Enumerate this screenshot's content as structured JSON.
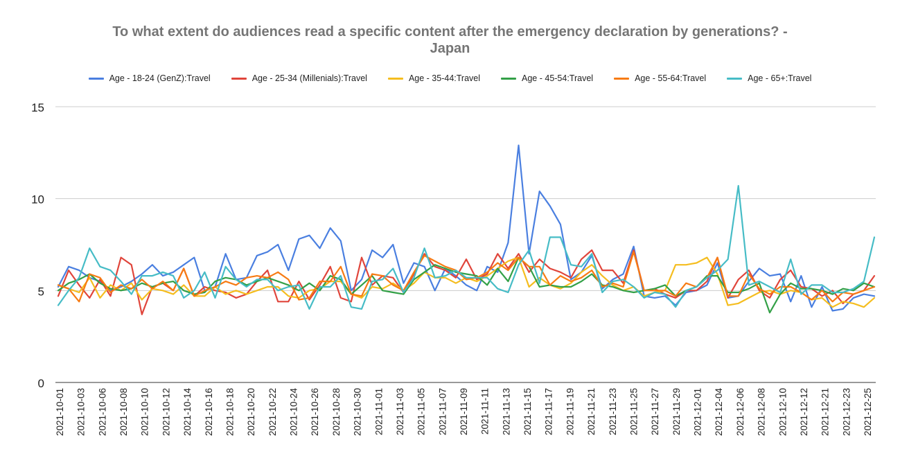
{
  "chart_data": {
    "type": "line",
    "title": "To what extent do audiences read a specific content after the emergency declaration by generations? - Japan",
    "title_lines": [
      "To what extent do audiences read a specific content after the emergency declaration by generations? -",
      "Japan"
    ],
    "xlabel": "",
    "ylabel": "",
    "ylim": [
      0,
      15
    ],
    "yticks": [
      0,
      5,
      10,
      15
    ],
    "grid": true,
    "legend_position": "top",
    "x_tick_labels": [
      "2021-10-01",
      "2021-10-03",
      "2021-10-06",
      "2021-10-08",
      "2021-10-10",
      "2021-10-12",
      "2021-10-14",
      "2021-10-16",
      "2021-10-18",
      "2021-10-20",
      "2021-10-22",
      "2021-10-24",
      "2021-10-26",
      "2021-10-28",
      "2021-10-30",
      "2021-11-01",
      "2021-11-03",
      "2021-11-05",
      "2021-11-07",
      "2021-11-09",
      "2021-11-11",
      "2021-11-13",
      "2021-11-15",
      "2021-11-17",
      "2021-11-19",
      "2021-11-21",
      "2021-11-23",
      "2021-11-25",
      "2021-11-27",
      "2021-11-29",
      "2021-12-01",
      "2021-12-04",
      "2021-12-06",
      "2021-12-08",
      "2021-12-10",
      "2021-12-12",
      "2021-12-21",
      "2021-12-23",
      "2021-12-25"
    ],
    "series": [
      {
        "name": "Age  - 18-24 (GenZ):Travel",
        "color": "#4a7fe0",
        "values": [
          5.2,
          6.3,
          6.1,
          5.7,
          5.5,
          5.0,
          5.2,
          5.5,
          5.9,
          6.4,
          5.8,
          6.0,
          6.4,
          6.8,
          5.0,
          5.2,
          7.0,
          5.6,
          5.7,
          6.9,
          7.1,
          7.5,
          6.1,
          7.8,
          8.0,
          7.3,
          8.4,
          7.7,
          5.0,
          5.6,
          7.2,
          6.8,
          7.5,
          5.4,
          6.5,
          6.3,
          5.0,
          6.2,
          5.8,
          5.3,
          5.0,
          6.3,
          6.0,
          7.6,
          12.9,
          7.0,
          10.4,
          9.6,
          8.6,
          5.6,
          6.0,
          6.9,
          5.1,
          5.6,
          5.9,
          7.4,
          4.7,
          4.6,
          4.7,
          4.2,
          4.9,
          5.0,
          5.3,
          6.5,
          4.6,
          4.7,
          5.5,
          6.2,
          5.8,
          5.9,
          4.4,
          5.8,
          4.1,
          5.2,
          3.9,
          4.0,
          4.6,
          4.8,
          4.7
        ]
      },
      {
        "name": "Age  - 25-34 (Millenials):Travel",
        "color": "#e0453b",
        "values": [
          4.7,
          6.1,
          5.3,
          4.6,
          5.6,
          4.7,
          6.8,
          6.4,
          3.7,
          5.2,
          5.4,
          5.0,
          6.2,
          4.7,
          5.2,
          5.0,
          4.9,
          4.6,
          4.8,
          5.5,
          6.1,
          4.4,
          4.4,
          5.5,
          4.5,
          5.3,
          6.3,
          4.6,
          4.4,
          6.8,
          5.3,
          5.8,
          5.7,
          4.9,
          5.9,
          7.0,
          6.3,
          6.1,
          5.7,
          6.7,
          5.6,
          5.9,
          7.0,
          6.2,
          7.0,
          6.0,
          6.7,
          6.2,
          6.0,
          5.7,
          6.7,
          7.2,
          6.1,
          6.1,
          5.4,
          7.2,
          5.0,
          5.1,
          4.8,
          4.6,
          5.0,
          5.0,
          5.5,
          6.8,
          4.6,
          5.6,
          6.1,
          5.0,
          4.6,
          5.6,
          6.1,
          5.2,
          5.1,
          4.7,
          5.0,
          4.3,
          4.8,
          5.0,
          5.8
        ]
      },
      {
        "name": "Age  - 35-44:Travel",
        "color": "#f5bd1f",
        "values": [
          5.3,
          5.1,
          4.9,
          5.7,
          4.6,
          5.3,
          5.0,
          5.4,
          4.5,
          5.1,
          5.0,
          4.8,
          5.3,
          4.7,
          4.7,
          5.2,
          4.8,
          5.0,
          4.8,
          5.0,
          5.2,
          5.2,
          4.7,
          4.6,
          5.0,
          5.1,
          5.5,
          5.5,
          4.8,
          4.6,
          5.2,
          5.1,
          5.4,
          5.0,
          5.4,
          6.0,
          5.7,
          5.7,
          5.4,
          5.7,
          5.5,
          5.8,
          6.2,
          6.6,
          6.8,
          5.2,
          5.7,
          5.3,
          5.1,
          5.4,
          6.0,
          6.4,
          5.8,
          5.3,
          5.0,
          5.2,
          4.7,
          4.9,
          5.0,
          6.4,
          6.4,
          6.5,
          6.8,
          5.9,
          4.2,
          4.3,
          4.6,
          4.9,
          5.0,
          4.8,
          5.0,
          4.9,
          4.5,
          4.6,
          4.1,
          4.4,
          4.3,
          4.1,
          4.6
        ]
      },
      {
        "name": "Age  - 45-54:Travel",
        "color": "#33a047",
        "values": [
          5.0,
          5.4,
          5.6,
          5.9,
          5.4,
          5.1,
          5.0,
          5.1,
          5.4,
          5.2,
          5.4,
          5.5,
          5.0,
          4.8,
          4.9,
          5.5,
          5.7,
          5.6,
          5.3,
          5.5,
          5.7,
          5.5,
          5.3,
          5.0,
          5.4,
          5.0,
          5.8,
          5.6,
          4.8,
          5.3,
          5.8,
          5.0,
          4.9,
          4.8,
          5.6,
          6.0,
          6.4,
          6.2,
          6.0,
          5.9,
          5.8,
          5.3,
          6.2,
          5.5,
          6.8,
          6.3,
          5.2,
          5.3,
          5.2,
          5.2,
          5.5,
          5.9,
          5.3,
          5.2,
          5.0,
          4.9,
          5.0,
          5.1,
          5.3,
          4.7,
          5.0,
          5.2,
          5.8,
          5.8,
          4.9,
          4.9,
          5.1,
          5.4,
          3.8,
          4.8,
          5.4,
          5.1,
          5.1,
          5.0,
          4.8,
          5.1,
          5.0,
          5.4,
          5.2
        ]
      },
      {
        "name": "Age  - 55-64:Travel",
        "color": "#f77b13",
        "values": [
          5.3,
          5.1,
          4.4,
          5.9,
          5.7,
          4.9,
          5.3,
          5.1,
          5.6,
          5.1,
          5.5,
          5.0,
          6.2,
          4.7,
          5.0,
          5.2,
          5.5,
          5.3,
          5.7,
          5.8,
          5.7,
          6.0,
          5.6,
          4.5,
          4.6,
          5.5,
          5.5,
          6.3,
          4.8,
          4.7,
          5.9,
          5.8,
          5.3,
          5.0,
          6.0,
          6.9,
          6.6,
          6.3,
          6.1,
          5.6,
          5.7,
          6.0,
          6.5,
          6.1,
          6.8,
          6.3,
          6.3,
          5.3,
          5.8,
          5.5,
          5.7,
          6.1,
          5.2,
          5.4,
          5.2,
          7.1,
          5.0,
          5.0,
          5.0,
          4.7,
          5.4,
          5.2,
          5.7,
          6.8,
          4.7,
          4.7,
          5.9,
          5.1,
          4.8,
          5.2,
          5.2,
          4.9,
          4.5,
          5.0,
          4.4,
          4.9,
          4.8,
          5.0,
          5.2
        ]
      },
      {
        "name": "Age  - 65+:Travel",
        "color": "#46bcc6",
        "values": [
          4.2,
          5.0,
          5.7,
          7.3,
          6.3,
          6.1,
          5.5,
          4.8,
          5.8,
          5.8,
          6.0,
          5.8,
          4.6,
          5.0,
          6.0,
          4.6,
          6.3,
          5.6,
          5.2,
          5.6,
          5.6,
          5.0,
          5.2,
          5.3,
          4.0,
          5.2,
          5.2,
          5.8,
          4.1,
          4.0,
          5.5,
          5.6,
          6.2,
          4.9,
          5.7,
          7.3,
          5.7,
          5.8,
          6.1,
          5.7,
          5.7,
          5.7,
          5.1,
          4.9,
          6.4,
          7.2,
          5.4,
          7.9,
          7.9,
          6.4,
          6.3,
          7.0,
          4.9,
          5.5,
          5.6,
          5.2,
          4.6,
          4.9,
          4.8,
          4.1,
          5.0,
          5.2,
          5.7,
          6.1,
          6.7,
          10.7,
          5.3,
          5.5,
          5.2,
          4.9,
          6.7,
          4.8,
          5.3,
          5.3,
          4.9,
          4.9,
          5.1,
          5.5,
          7.9
        ]
      }
    ]
  }
}
